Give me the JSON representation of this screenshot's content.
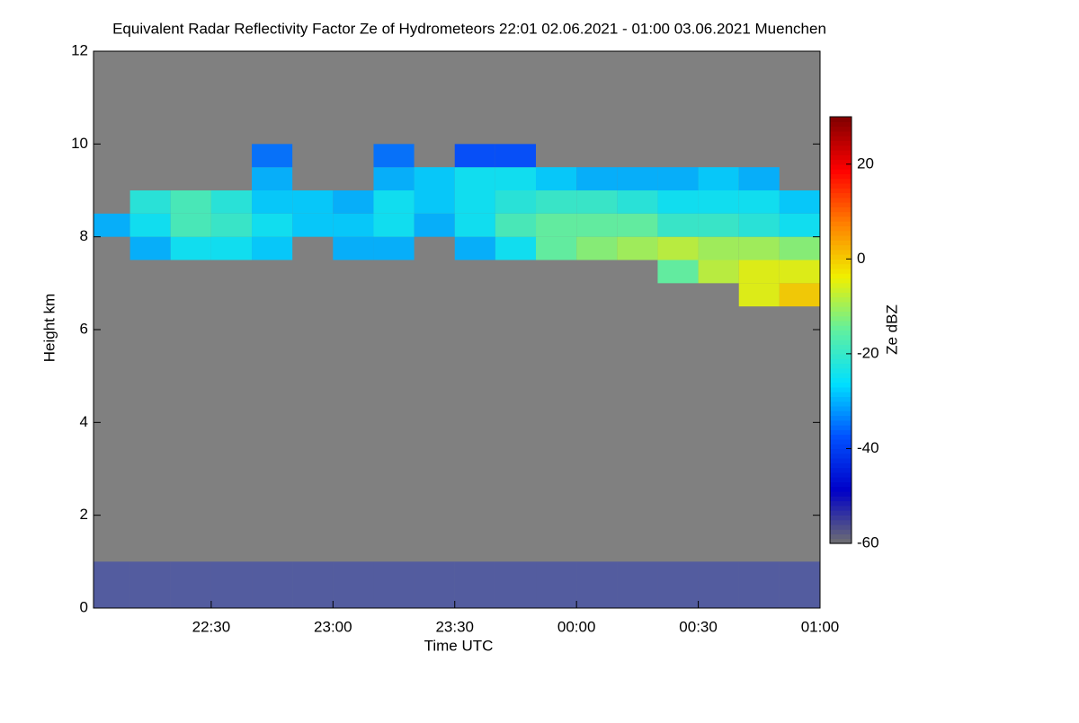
{
  "chart_data": {
    "type": "heatmap",
    "title": "Equivalent Radar Reflectivity Factor Ze of Hydrometeors   22:01 02.06.2021 - 01:00 03.06.2021 Muenchen",
    "x_label": "Time UTC",
    "y_label": "Height km",
    "colorbar_label": "Ze dBZ",
    "xlim": [
      22.0167,
      25.0
    ],
    "xticks": [
      {
        "value": 22.5,
        "label": "22:30"
      },
      {
        "value": 23.0,
        "label": "23:00"
      },
      {
        "value": 23.5,
        "label": "23:30"
      },
      {
        "value": 24.0,
        "label": "00:00"
      },
      {
        "value": 24.5,
        "label": "00:30"
      },
      {
        "value": 25.0,
        "label": "01:00"
      }
    ],
    "ylim": [
      0,
      12
    ],
    "yticks": [
      0,
      2,
      4,
      6,
      8,
      10,
      12
    ],
    "x_bins": [
      22.0167,
      22.1667,
      22.3333,
      22.5,
      22.6667,
      22.8333,
      23.0,
      23.1667,
      23.3333,
      23.5,
      23.6667,
      23.8333,
      24.0,
      24.1667,
      24.3333,
      24.5,
      24.6667,
      24.8333,
      25.0
    ],
    "y_bins": [
      0,
      1,
      6.5,
      7,
      7.5,
      8,
      8.5,
      9,
      9.5,
      10
    ],
    "values": [
      [
        -45,
        -45,
        -45,
        -45,
        -45,
        -45,
        -45,
        -45,
        -45,
        -45,
        -45,
        -45,
        -45,
        -45,
        -45,
        -45,
        -45,
        -45
      ],
      [
        null,
        null,
        null,
        null,
        null,
        null,
        null,
        null,
        null,
        null,
        null,
        null,
        null,
        null,
        null,
        null,
        null,
        null
      ],
      [
        null,
        null,
        null,
        null,
        null,
        null,
        null,
        null,
        null,
        null,
        null,
        null,
        null,
        null,
        null,
        null,
        -5,
        0
      ],
      [
        null,
        null,
        null,
        null,
        null,
        null,
        null,
        null,
        null,
        null,
        null,
        null,
        null,
        null,
        -15,
        -8,
        -5,
        -5
      ],
      [
        null,
        -30,
        -25,
        -25,
        -28,
        null,
        -30,
        -30,
        null,
        -30,
        -25,
        -15,
        -12,
        -10,
        -8,
        -10,
        -10,
        -12
      ],
      [
        -30,
        -25,
        -18,
        -20,
        -25,
        -28,
        -28,
        -25,
        -30,
        -25,
        -18,
        -15,
        -15,
        -15,
        -20,
        -20,
        -22,
        -25
      ],
      [
        null,
        -22,
        -18,
        -22,
        -28,
        -28,
        -30,
        -25,
        -28,
        -25,
        -22,
        -20,
        -20,
        -22,
        -25,
        -25,
        -25,
        -28
      ],
      [
        null,
        null,
        null,
        null,
        -30,
        null,
        null,
        -30,
        -28,
        -25,
        -25,
        -28,
        -30,
        -30,
        -30,
        -28,
        -30,
        null
      ],
      [
        null,
        null,
        null,
        null,
        -35,
        null,
        null,
        -35,
        null,
        -38,
        -38,
        null,
        null,
        null,
        null,
        null,
        null,
        null
      ]
    ],
    "clim": [
      -60,
      30
    ],
    "cticks": [
      -60,
      -40,
      -20,
      0,
      20
    ],
    "colorscale": [
      "#707070",
      "#0000c8",
      "#0050ff",
      "#00e0ff",
      "#60f0a0",
      "#f0f000",
      "#ff8000",
      "#ff0000",
      "#800000"
    ],
    "background": "#808080"
  }
}
